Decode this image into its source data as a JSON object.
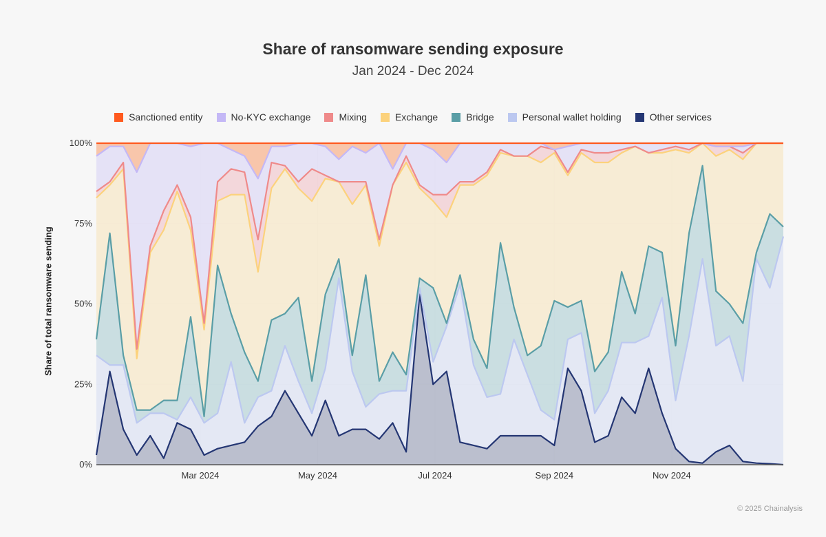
{
  "chart_data": {
    "type": "area",
    "stacked": true,
    "normalized": true,
    "title": "Share of ransomware sending exposure",
    "subtitle": "Jan 2024 - Dec 2024",
    "ylabel": "Share of total ransomware sending",
    "xlabel": "",
    "ylim": [
      0,
      100
    ],
    "yticks": [
      "0%",
      "25%",
      "50%",
      "75%",
      "100%"
    ],
    "xticks": [
      {
        "date": "2024-03-01",
        "label": "Mar 2024"
      },
      {
        "date": "2024-05-01",
        "label": "May 2024"
      },
      {
        "date": "2024-07-01",
        "label": "Jul 2024"
      },
      {
        "date": "2024-09-01",
        "label": "Sep 2024"
      },
      {
        "date": "2024-11-01",
        "label": "Nov 2024"
      }
    ],
    "grid": true,
    "legend_position": "top",
    "x": [
      "2024-01-07",
      "2024-01-14",
      "2024-01-21",
      "2024-01-28",
      "2024-02-04",
      "2024-02-11",
      "2024-02-18",
      "2024-02-25",
      "2024-03-03",
      "2024-03-10",
      "2024-03-17",
      "2024-03-24",
      "2024-03-31",
      "2024-04-07",
      "2024-04-14",
      "2024-04-21",
      "2024-04-28",
      "2024-05-05",
      "2024-05-12",
      "2024-05-19",
      "2024-05-26",
      "2024-06-02",
      "2024-06-09",
      "2024-06-16",
      "2024-06-23",
      "2024-06-30",
      "2024-07-07",
      "2024-07-14",
      "2024-07-21",
      "2024-07-28",
      "2024-08-04",
      "2024-08-11",
      "2024-08-18",
      "2024-08-25",
      "2024-09-01",
      "2024-09-08",
      "2024-09-15",
      "2024-09-22",
      "2024-09-29",
      "2024-10-06",
      "2024-10-13",
      "2024-10-20",
      "2024-10-27",
      "2024-11-03",
      "2024-11-10",
      "2024-11-17",
      "2024-11-24",
      "2024-12-01",
      "2024-12-08",
      "2024-12-15",
      "2024-12-22",
      "2024-12-29"
    ],
    "series": [
      {
        "name": "Other services",
        "color": "#243673",
        "fill": "#b7bccb",
        "values": [
          3,
          29,
          11,
          3,
          9,
          2,
          13,
          11,
          3,
          5,
          6,
          7,
          12,
          15,
          23,
          16,
          9,
          20,
          9,
          11,
          11,
          8,
          13,
          4,
          53,
          25,
          29,
          7,
          6,
          5,
          9,
          9,
          9,
          9,
          6,
          30,
          23,
          7,
          9,
          21,
          16,
          30,
          16,
          5,
          1,
          0.5,
          4,
          6,
          1,
          0.5,
          0.3,
          0
        ]
      },
      {
        "name": "Personal wallet holding",
        "color": "#bcc8f0",
        "fill": "#e3e7f3",
        "values": [
          31,
          2,
          20,
          10,
          7,
          14,
          1,
          10,
          10,
          11,
          26,
          6,
          9,
          8,
          14,
          10,
          7,
          10,
          49,
          18,
          7,
          14,
          10,
          19,
          2,
          7,
          14,
          49,
          25,
          16,
          13,
          30,
          19,
          8,
          8,
          9,
          18,
          9,
          14,
          17,
          22,
          10,
          36,
          15,
          39,
          63.5,
          33,
          34,
          25,
          63.5,
          54.7,
          71
        ]
      },
      {
        "name": "Bridge",
        "color": "#5a9ea6",
        "fill": "#c7dcdf",
        "values": [
          5,
          41,
          3,
          4,
          1,
          4,
          6,
          25,
          2,
          46,
          15,
          22,
          5,
          22,
          10,
          26,
          10,
          23,
          6,
          5,
          41,
          4,
          12,
          5,
          3,
          23,
          1,
          3,
          8,
          9,
          47,
          10,
          6,
          20,
          37,
          10,
          10,
          13,
          12,
          22,
          9,
          28,
          14,
          17,
          32,
          29,
          17,
          10,
          18,
          2,
          23,
          3
        ]
      },
      {
        "name": "Exchange",
        "color": "#fcd27c",
        "fill": "#f7ebd3",
        "values": [
          44,
          15,
          58,
          16,
          49,
          53,
          65,
          27,
          27,
          20,
          37,
          49,
          34,
          41,
          45,
          34,
          56,
          36,
          24,
          47,
          28,
          42,
          52,
          66,
          28,
          27,
          33,
          28,
          48,
          60,
          28,
          47,
          62,
          57,
          46,
          41,
          46,
          65,
          59,
          37,
          52,
          29,
          31,
          61,
          25,
          7,
          42,
          48,
          51,
          34,
          22,
          26
        ]
      },
      {
        "name": "Mixing",
        "color": "#ef8a8a",
        "fill": "#f2d5d9",
        "values": [
          2,
          1,
          2,
          3,
          2,
          6,
          2,
          4,
          2,
          6,
          8,
          7,
          10,
          8,
          1,
          2,
          10,
          1,
          0,
          7,
          1,
          2,
          0,
          2,
          1,
          2,
          7,
          1,
          1,
          1,
          1,
          0,
          0,
          5,
          1,
          1,
          1,
          3,
          3,
          1,
          0,
          0,
          1,
          1,
          1,
          0,
          3,
          1,
          2,
          0,
          0,
          0
        ]
      },
      {
        "name": "No-KYC exchange",
        "color": "#c4b8f6",
        "fill": "#e4e0f6",
        "values": [
          11,
          11,
          5,
          55,
          32,
          21,
          13,
          22,
          56,
          12,
          6,
          5,
          19,
          5,
          6,
          12,
          8,
          9,
          7,
          11,
          9,
          30,
          5,
          4,
          13,
          14,
          10,
          12,
          12,
          9,
          2,
          4,
          4,
          1,
          0,
          8,
          2,
          3,
          3,
          2,
          1,
          3,
          2,
          1,
          2,
          0,
          0,
          0,
          2,
          0,
          0,
          0
        ]
      },
      {
        "name": "Sanctioned entity",
        "color": "#ff5a1f",
        "fill": "#f8c3a6",
        "values": [
          4,
          1,
          1,
          9,
          0,
          0,
          0,
          1,
          0,
          0,
          2,
          4,
          11,
          1,
          1,
          0,
          0,
          1,
          5,
          1,
          3,
          0,
          8,
          0,
          0,
          2,
          6,
          0,
          0,
          0,
          0,
          0,
          0,
          0,
          2,
          1,
          0,
          0,
          0,
          0,
          0,
          0,
          0,
          0,
          0,
          0,
          1,
          1,
          1,
          0,
          0,
          0
        ]
      }
    ]
  },
  "legend_order": [
    "Sanctioned entity",
    "No-KYC exchange",
    "Mixing",
    "Exchange",
    "Bridge",
    "Personal wallet holding",
    "Other services"
  ],
  "copyright": "© 2025 Chainalysis"
}
